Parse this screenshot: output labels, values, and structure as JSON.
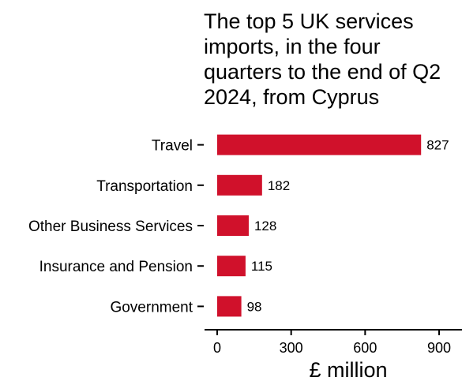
{
  "chart_data": {
    "type": "bar",
    "orientation": "horizontal",
    "title_lines": [
      "The top 5 UK services",
      "imports, in the four",
      "quarters to the end of Q2",
      "2024, from Cyprus"
    ],
    "categories": [
      "Travel",
      "Transportation",
      "Other Business Services",
      "Insurance and Pension",
      "Government"
    ],
    "values": [
      827,
      182,
      128,
      115,
      98
    ],
    "value_labels": [
      "827",
      "182",
      "128",
      "115",
      "98"
    ],
    "xlabel": "£ million",
    "ylabel": "",
    "xlim": [
      0,
      970
    ],
    "xticks": [
      0,
      300,
      600,
      900
    ],
    "xtick_labels": [
      "0",
      "300",
      "600",
      "900"
    ],
    "grid": false,
    "legend": "none",
    "bar_color": "#d0112b"
  }
}
